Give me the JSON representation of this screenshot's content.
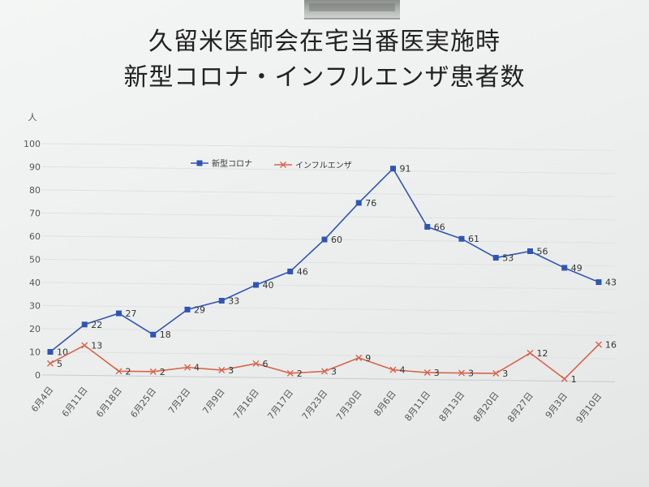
{
  "chart_data": {
    "type": "line",
    "title": "久留米医師会在宅当番医実施時",
    "subtitle": "新型コロナ・インフルエンザ患者数",
    "ylabel": "人",
    "ylim": [
      0,
      100
    ],
    "yticks": [
      0,
      10,
      20,
      30,
      40,
      50,
      60,
      70,
      80,
      90,
      100
    ],
    "grid": true,
    "legend_position": "top-center",
    "categories": [
      "6月4日",
      "6月11日",
      "6月18日",
      "6月25日",
      "7月2日",
      "7月9日",
      "7月16日",
      "7月17日",
      "7月23日",
      "7月30日",
      "8月6日",
      "8月11日",
      "8月13日",
      "8月20日",
      "8月27日",
      "9月3日",
      "9月10日"
    ],
    "series": [
      {
        "name": "新型コロナ",
        "color": "#2f55b4",
        "marker": "square",
        "values": [
          10,
          22,
          27,
          18,
          29,
          33,
          40,
          46,
          60,
          76,
          91,
          66,
          61,
          53,
          56,
          49,
          43
        ]
      },
      {
        "name": "インフルエンザ",
        "color": "#d9644a",
        "marker": "x",
        "values": [
          5,
          13,
          2,
          2,
          4,
          3,
          6,
          2,
          3,
          9,
          4,
          3,
          3,
          3,
          12,
          1,
          16
        ]
      }
    ]
  }
}
